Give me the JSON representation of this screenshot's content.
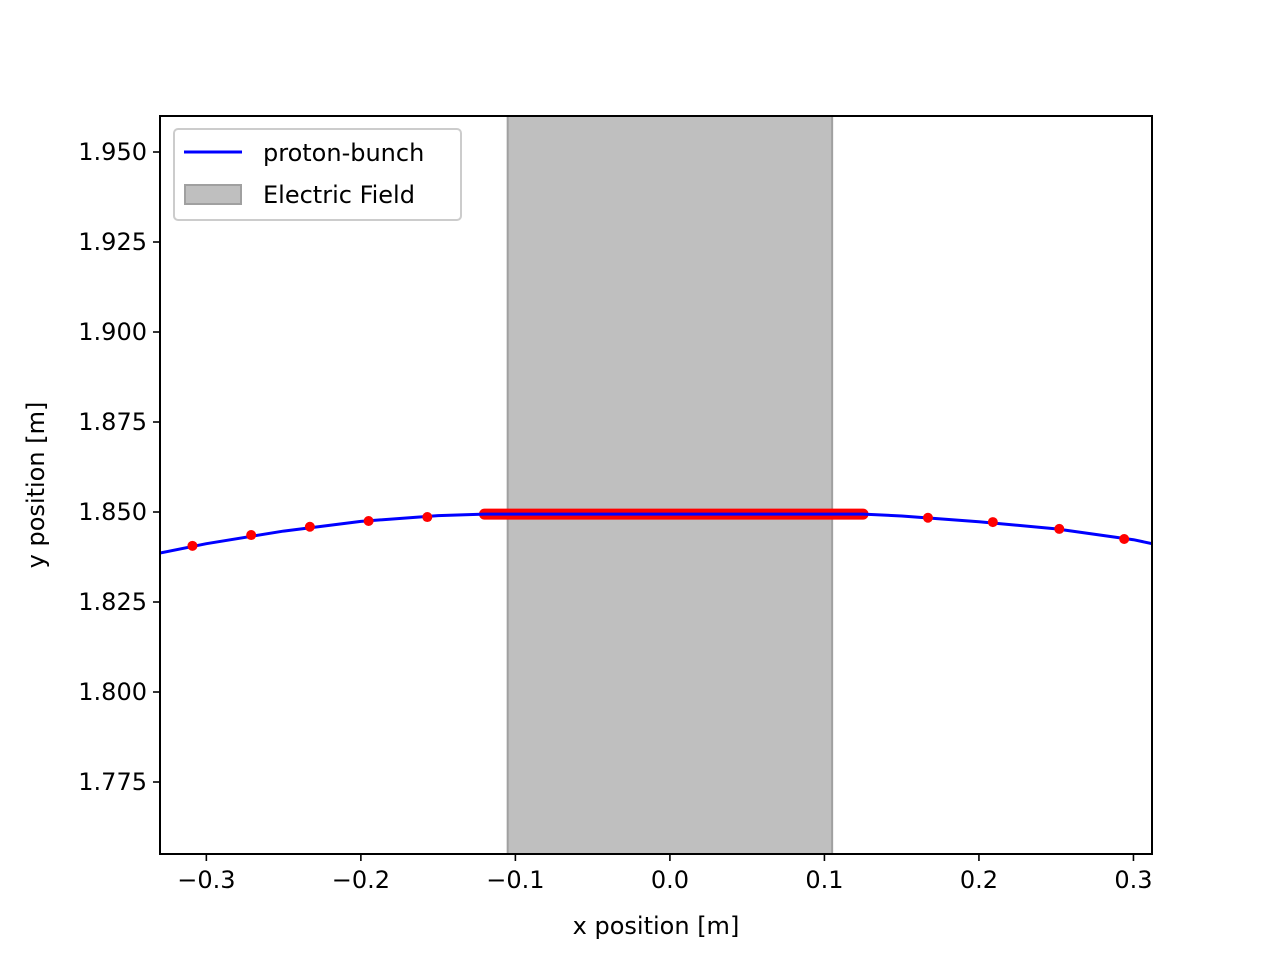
{
  "chart_data": {
    "type": "line",
    "title": "",
    "xlabel": "x  position  [m]",
    "ylabel": "y  position [m]",
    "xlim": [
      -0.33,
      0.312
    ],
    "ylim": [
      1.755,
      1.96
    ],
    "xticks": [
      -0.3,
      -0.2,
      -0.1,
      0.0,
      0.1,
      0.2,
      0.3
    ],
    "xtick_labels": [
      "−0.3",
      "−0.2",
      "−0.1",
      "0.0",
      "0.1",
      "0.2",
      "0.3"
    ],
    "yticks": [
      1.775,
      1.8,
      1.825,
      1.85,
      1.875,
      1.9,
      1.925,
      1.95
    ],
    "ytick_labels": [
      "1.775",
      "1.800",
      "1.825",
      "1.850",
      "1.875",
      "1.900",
      "1.925",
      "1.950"
    ],
    "grid": false,
    "legend_position": "upper-left",
    "series": [
      {
        "name": "proton-bunch",
        "kind": "line",
        "color": "#0000ff",
        "x": [
          -0.33,
          -0.3,
          -0.25,
          -0.2,
          -0.15,
          -0.12,
          -0.105,
          0.0,
          0.105,
          0.125,
          0.15,
          0.2,
          0.25,
          0.3,
          0.312
        ],
        "y": [
          1.8386,
          1.8412,
          1.8447,
          1.8474,
          1.849,
          1.8494,
          1.8494,
          1.8494,
          1.8494,
          1.8494,
          1.8489,
          1.8473,
          1.8453,
          1.8423,
          1.8412
        ]
      }
    ],
    "markers": {
      "color": "#ff0000",
      "points": [
        {
          "x": -0.309,
          "y": 1.8406
        },
        {
          "x": -0.271,
          "y": 1.8436
        },
        {
          "x": -0.233,
          "y": 1.8459
        },
        {
          "x": -0.195,
          "y": 1.8475
        },
        {
          "x": -0.157,
          "y": 1.8486
        },
        {
          "x": 0.167,
          "y": 1.8484
        },
        {
          "x": 0.209,
          "y": 1.8472
        },
        {
          "x": 0.252,
          "y": 1.8453
        },
        {
          "x": 0.294,
          "y": 1.8425
        }
      ],
      "dense_segment": {
        "x_start": -0.12,
        "x_end": 0.125,
        "y": 1.8494
      }
    },
    "regions": [
      {
        "name": "Electric Field",
        "x_start": -0.105,
        "x_end": 0.105,
        "fill": "#bfbfbf",
        "edge": "#a0a0a0"
      }
    ]
  }
}
